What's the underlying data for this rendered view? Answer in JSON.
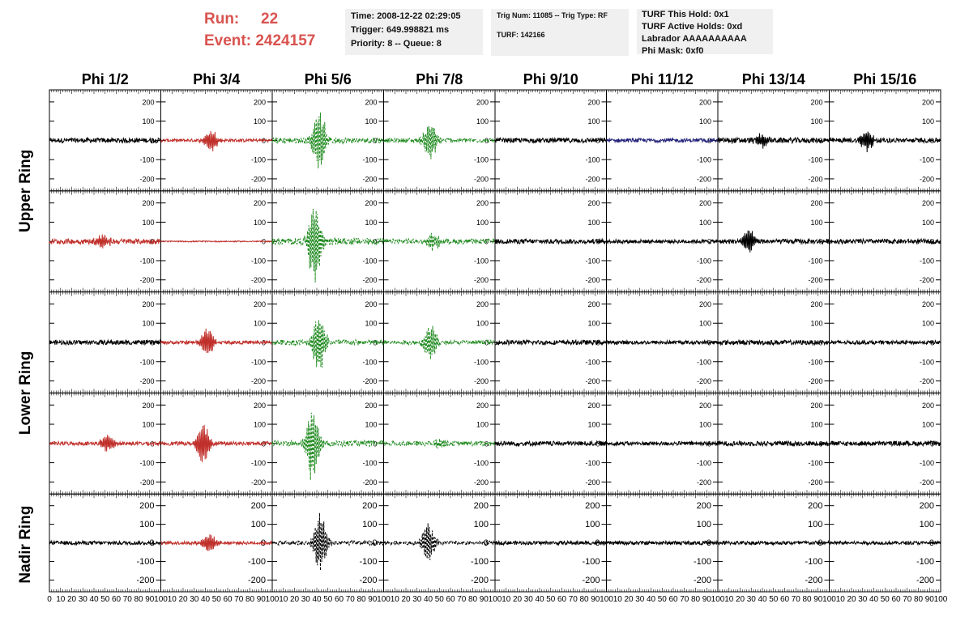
{
  "header": {
    "run_label": "Run:",
    "run_value": "22",
    "event_label": "Event:",
    "event_value": "2424157"
  },
  "info_time": [
    "Time: 2008-12-22 02:29:05",
    "Trigger: 649.998821 ms",
    "Priority: 8 -- Queue: 8"
  ],
  "info_trig": [
    "Trig Num: 11085 -- Trig Type: RF",
    "TURF: 142166"
  ],
  "info_turf": [
    "TURF This Hold: 0x1",
    "TURF Active Holds: 0xd",
    "Labrador AAAAAAAAAA",
    "Phi Mask: 0xf0"
  ],
  "colors": {
    "red": "#c0302b",
    "green": "#1f8a1f",
    "blue": "#23237a",
    "black": "#000000"
  },
  "chart_data": {
    "type": "line",
    "columns": [
      "Phi 1/2",
      "Phi 3/4",
      "Phi 5/6",
      "Phi 7/8",
      "Phi 9/10",
      "Phi 11/12",
      "Phi 13/14",
      "Phi 15/16"
    ],
    "ring_labels": [
      {
        "text": "Upper Ring",
        "rows": [
          0,
          1
        ]
      },
      {
        "text": "Lower Ring",
        "rows": [
          2,
          3
        ]
      },
      {
        "text": "Nadir Ring",
        "rows": [
          4
        ]
      }
    ],
    "ylim": [
      -250,
      250
    ],
    "y_ticks": [
      "-200",
      "-100",
      "0",
      "100",
      "200"
    ],
    "xlim": [
      0,
      100
    ],
    "x_ticks": [
      "0",
      "10",
      "20",
      "30",
      "40",
      "50",
      "60",
      "70",
      "80",
      "90",
      "100"
    ],
    "rows": [
      [
        {
          "color": "black",
          "style": "solid",
          "amp": 12,
          "peak": 0,
          "center": 50
        },
        {
          "color": "red",
          "style": "solid",
          "amp": 8,
          "peak": 60,
          "center": 45
        },
        {
          "color": "green",
          "style": "dashed",
          "amp": 15,
          "peak": 180,
          "center": 42
        },
        {
          "color": "green",
          "style": "dashed",
          "amp": 12,
          "peak": 110,
          "center": 42
        },
        {
          "color": "black",
          "style": "solid",
          "amp": 12,
          "peak": 0,
          "center": 50
        },
        {
          "color": "blue",
          "style": "solid",
          "amp": 10,
          "peak": 0,
          "center": 50
        },
        {
          "color": "black",
          "style": "solid",
          "amp": 14,
          "peak": 40,
          "center": 40
        },
        {
          "color": "black",
          "style": "solid",
          "amp": 12,
          "peak": 60,
          "center": 34
        }
      ],
      [
        {
          "color": "red",
          "style": "solid",
          "amp": 14,
          "peak": 40,
          "center": 48
        },
        {
          "color": "red",
          "style": "solid",
          "amp": 3,
          "peak": 0,
          "center": 50
        },
        {
          "color": "green",
          "style": "dashed",
          "amp": 18,
          "peak": 220,
          "center": 38
        },
        {
          "color": "green",
          "style": "dashed",
          "amp": 13,
          "peak": 50,
          "center": 45
        },
        {
          "color": "black",
          "style": "solid",
          "amp": 12,
          "peak": 0,
          "center": 50
        },
        {
          "color": "black",
          "style": "solid",
          "amp": 10,
          "peak": 0,
          "center": 50
        },
        {
          "color": "black",
          "style": "solid",
          "amp": 12,
          "peak": 70,
          "center": 28
        },
        {
          "color": "black",
          "style": "solid",
          "amp": 12,
          "peak": 0,
          "center": 50
        }
      ],
      [
        {
          "color": "black",
          "style": "solid",
          "amp": 12,
          "peak": 0,
          "center": 50
        },
        {
          "color": "red",
          "style": "solid",
          "amp": 9,
          "peak": 80,
          "center": 42
        },
        {
          "color": "green",
          "style": "dashed",
          "amp": 15,
          "peak": 170,
          "center": 42
        },
        {
          "color": "green",
          "style": "dashed",
          "amp": 12,
          "peak": 100,
          "center": 42
        },
        {
          "color": "black",
          "style": "solid",
          "amp": 12,
          "peak": 0,
          "center": 50
        },
        {
          "color": "black",
          "style": "solid",
          "amp": 10,
          "peak": 0,
          "center": 50
        },
        {
          "color": "black",
          "style": "solid",
          "amp": 12,
          "peak": 0,
          "center": 50
        },
        {
          "color": "black",
          "style": "solid",
          "amp": 10,
          "peak": 0,
          "center": 50
        }
      ],
      [
        {
          "color": "red",
          "style": "solid",
          "amp": 10,
          "peak": 50,
          "center": 52
        },
        {
          "color": "red",
          "style": "solid",
          "amp": 10,
          "peak": 110,
          "center": 38
        },
        {
          "color": "green",
          "style": "dashed",
          "amp": 15,
          "peak": 200,
          "center": 36
        },
        {
          "color": "green",
          "style": "dashed",
          "amp": 12,
          "peak": 20,
          "center": 50
        },
        {
          "color": "black",
          "style": "solid",
          "amp": 12,
          "peak": 0,
          "center": 50
        },
        {
          "color": "black",
          "style": "solid",
          "amp": 10,
          "peak": 0,
          "center": 50
        },
        {
          "color": "black",
          "style": "solid",
          "amp": 12,
          "peak": 0,
          "center": 50
        },
        {
          "color": "black",
          "style": "solid",
          "amp": 12,
          "peak": 0,
          "center": 50
        }
      ],
      [
        {
          "color": "black",
          "style": "solid",
          "amp": 10,
          "peak": 0,
          "center": 50
        },
        {
          "color": "red",
          "style": "solid",
          "amp": 9,
          "peak": 55,
          "center": 43
        },
        {
          "color": "black",
          "style": "dashed",
          "amp": 12,
          "peak": 170,
          "center": 43
        },
        {
          "color": "black",
          "style": "dashed",
          "amp": 10,
          "peak": 120,
          "center": 40
        },
        {
          "color": "black",
          "style": "solid",
          "amp": 10,
          "peak": 0,
          "center": 50
        },
        {
          "color": "black",
          "style": "solid",
          "amp": 10,
          "peak": 0,
          "center": 50
        },
        {
          "color": "black",
          "style": "solid",
          "amp": 10,
          "peak": 0,
          "center": 50
        },
        {
          "color": "black",
          "style": "solid",
          "amp": 9,
          "peak": 0,
          "center": 50
        }
      ]
    ]
  }
}
